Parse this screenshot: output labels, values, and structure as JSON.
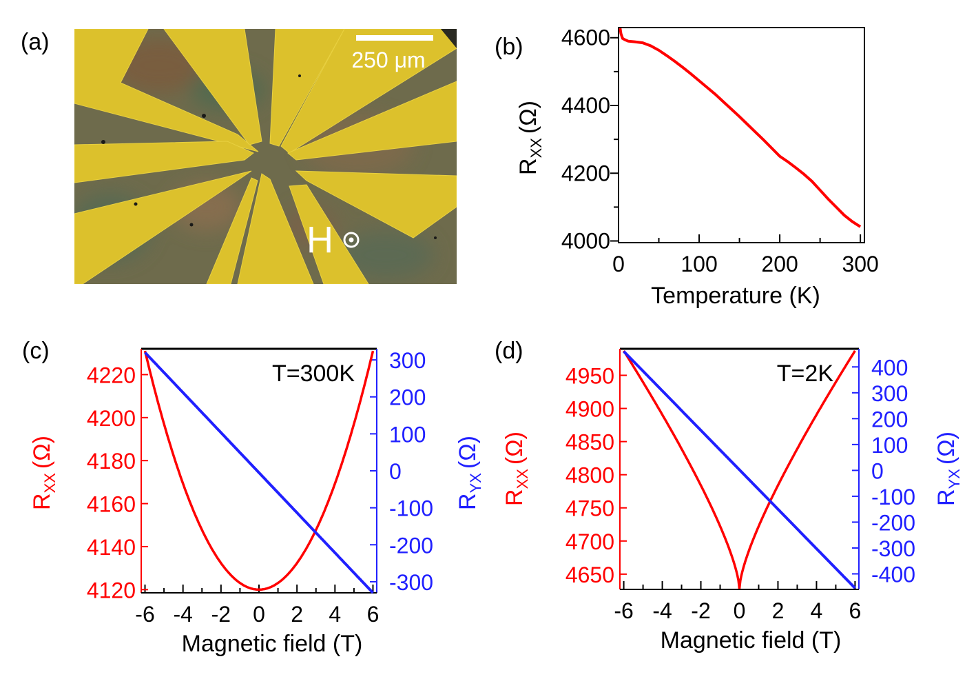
{
  "panels": {
    "a": {
      "label": "(a)",
      "scale_bar": "250 μm",
      "field_label": "H"
    }
  },
  "colors": {
    "rxx": "#ff0000",
    "ryx": "#2020ff",
    "axis": "#000000",
    "gold": "#ddc12e",
    "substrate": "#6d6a4a"
  },
  "chart_data": [
    {
      "id": "b",
      "label": "(b)",
      "type": "line",
      "xlabel": "Temperature (K)",
      "ylabel": "R",
      "ylabel_sub": "XX",
      "ylabel_unit": "(Ω)",
      "xlim": [
        0,
        305
      ],
      "ylim": [
        3995,
        4630
      ],
      "xticks": [
        0,
        100,
        200,
        300
      ],
      "yticks": [
        4000,
        4200,
        4400,
        4600
      ],
      "series": [
        {
          "name": "Rxx",
          "color": "#ff0000",
          "x": [
            2,
            3,
            5,
            8,
            12,
            20,
            30,
            40,
            50,
            60,
            70,
            80,
            90,
            100,
            110,
            120,
            130,
            140,
            150,
            160,
            170,
            180,
            190,
            200,
            210,
            220,
            230,
            240,
            250,
            260,
            270,
            280,
            290,
            300
          ],
          "y": [
            4628,
            4612,
            4598,
            4594,
            4590,
            4588,
            4585,
            4576,
            4563,
            4547,
            4530,
            4512,
            4493,
            4473,
            4453,
            4433,
            4411,
            4389,
            4367,
            4344,
            4321,
            4298,
            4274,
            4250,
            4234,
            4216,
            4197,
            4176,
            4150,
            4124,
            4100,
            4076,
            4057,
            4042
          ]
        }
      ]
    },
    {
      "id": "c",
      "label": "(c)",
      "type": "line",
      "annotation": "T=300K",
      "xlabel": "Magnetic field (T)",
      "xlim": [
        -6.2,
        6.2
      ],
      "xticks": [
        -6,
        -4,
        -2,
        0,
        2,
        4,
        6
      ],
      "left_axis": {
        "label": "R",
        "label_sub": "XX",
        "label_unit": "(Ω)",
        "color": "#ff0000",
        "ylim": [
          4118.5,
          4232
        ],
        "ticks": [
          4120,
          4140,
          4160,
          4180,
          4200,
          4220
        ]
      },
      "right_axis": {
        "label": "R",
        "label_sub": "YX",
        "label_unit": "(Ω)",
        "color": "#2020ff",
        "ylim": [
          -330,
          330
        ],
        "ticks": [
          -300,
          -200,
          -100,
          0,
          100,
          200,
          300
        ]
      },
      "series": [
        {
          "name": "Rxx",
          "axis": "left",
          "color": "#ff0000",
          "model": "parabola",
          "min": 4120,
          "max": 4231,
          "xmin": -6,
          "xmax": 6
        },
        {
          "name": "Ryx",
          "axis": "right",
          "color": "#2020ff",
          "model": "linear",
          "y_at_xmin": 320,
          "y_at_xmax": -330,
          "xmin": -6,
          "xmax": 6
        }
      ]
    },
    {
      "id": "d",
      "label": "(d)",
      "type": "line",
      "annotation": "T=2K",
      "xlabel": "Magnetic field (T)",
      "xlim": [
        -6.2,
        6.2
      ],
      "xticks": [
        -6,
        -4,
        -2,
        0,
        2,
        4,
        6
      ],
      "left_axis": {
        "label": "R",
        "label_sub": "XX",
        "label_unit": "(Ω)",
        "color": "#ff0000",
        "ylim": [
          4627,
          4990
        ],
        "ticks": [
          4650,
          4700,
          4750,
          4800,
          4850,
          4900,
          4950
        ]
      },
      "right_axis": {
        "label": "R",
        "label_sub": "YX",
        "label_unit": "(Ω)",
        "color": "#2020ff",
        "ylim": [
          -460,
          470
        ],
        "ticks": [
          -400,
          -300,
          -200,
          -100,
          0,
          100,
          200,
          300,
          400
        ]
      },
      "series": [
        {
          "name": "Rxx",
          "axis": "left",
          "color": "#ff0000",
          "model": "cusp",
          "min": 4628,
          "max": 4987,
          "xmin": -6,
          "xmax": 6
        },
        {
          "name": "Ryx",
          "axis": "right",
          "color": "#2020ff",
          "model": "linear",
          "y_at_xmin": 460,
          "y_at_xmax": -455,
          "xmin": -6,
          "xmax": 6
        }
      ]
    }
  ]
}
